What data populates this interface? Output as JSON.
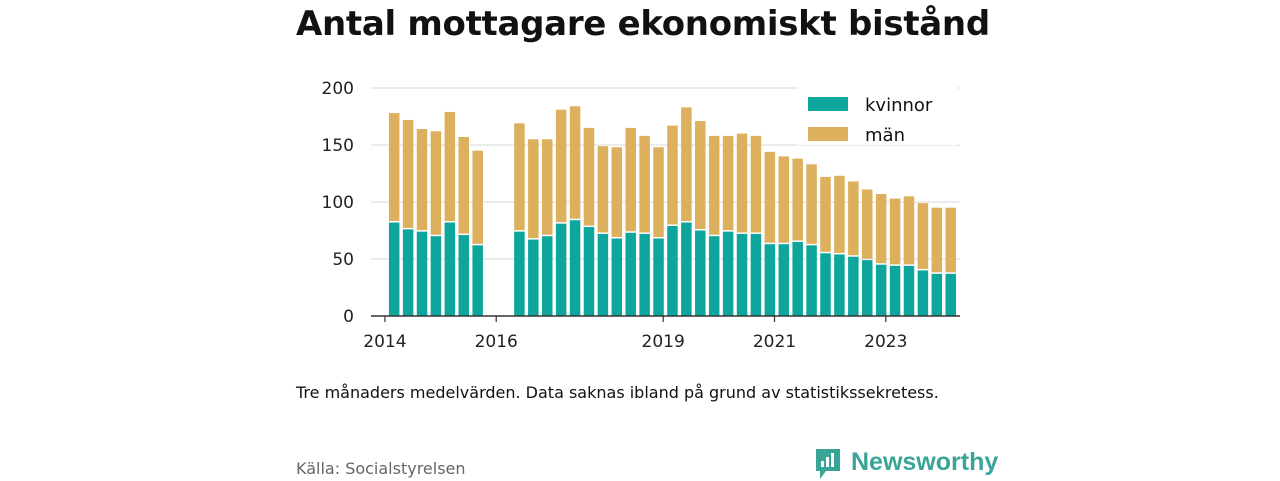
{
  "title": "Antal mottagare ekonomiskt bistånd",
  "note": "Tre månaders medelvärden. Data saknas ibland på grund av statistikssekretess.",
  "source": "Källa: Socialstyrelsen",
  "brand": {
    "name": "Newsworthy",
    "icon": "bar-chart-speech-bubble-icon"
  },
  "colors": {
    "kvinnor": "#0ea59c",
    "man": "#dcb05c",
    "axis": "#333333",
    "grid": "#d9d9d9"
  },
  "chart_data": {
    "type": "bar",
    "stacked": true,
    "ylim": [
      0,
      200
    ],
    "yticks": [
      0,
      50,
      100,
      150,
      200
    ],
    "xlim": [
      "2013-10",
      "2024-05"
    ],
    "xticks": [
      {
        "label": "2014",
        "x": "2014-01"
      },
      {
        "label": "2016",
        "x": "2016-01"
      },
      {
        "label": "2019",
        "x": "2019-01"
      },
      {
        "label": "2021",
        "x": "2021-01"
      },
      {
        "label": "2023",
        "x": "2023-01"
      }
    ],
    "grid": true,
    "legend_position": "top-right",
    "x": [
      "2014-03",
      "2014-06",
      "2014-09",
      "2014-12",
      "2015-03",
      "2015-06",
      "2015-09",
      "2016-06",
      "2016-09",
      "2016-12",
      "2017-03",
      "2017-06",
      "2017-09",
      "2017-12",
      "2018-03",
      "2018-06",
      "2018-09",
      "2018-12",
      "2019-03",
      "2019-06",
      "2019-09",
      "2019-12",
      "2020-03",
      "2020-06",
      "2020-09",
      "2020-12",
      "2021-03",
      "2021-06",
      "2021-09",
      "2021-12",
      "2022-03",
      "2022-06",
      "2022-09",
      "2022-12",
      "2023-03",
      "2023-06",
      "2023-09",
      "2023-12",
      "2024-03"
    ],
    "series": [
      {
        "name": "kvinnor",
        "values": [
          82,
          76,
          74,
          70,
          82,
          71,
          62,
          74,
          67,
          70,
          81,
          84,
          78,
          72,
          68,
          73,
          72,
          68,
          79,
          82,
          75,
          70,
          74,
          72,
          72,
          63,
          63,
          65,
          62,
          55,
          54,
          52,
          49,
          45,
          44,
          44,
          40,
          37,
          37
        ]
      },
      {
        "name": "män",
        "values": [
          96,
          96,
          90,
          92,
          97,
          86,
          83,
          95,
          88,
          85,
          100,
          100,
          87,
          77,
          80,
          92,
          86,
          80,
          88,
          101,
          96,
          88,
          84,
          88,
          86,
          81,
          77,
          73,
          71,
          67,
          69,
          66,
          62,
          62,
          59,
          61,
          59,
          58,
          58
        ]
      }
    ]
  }
}
